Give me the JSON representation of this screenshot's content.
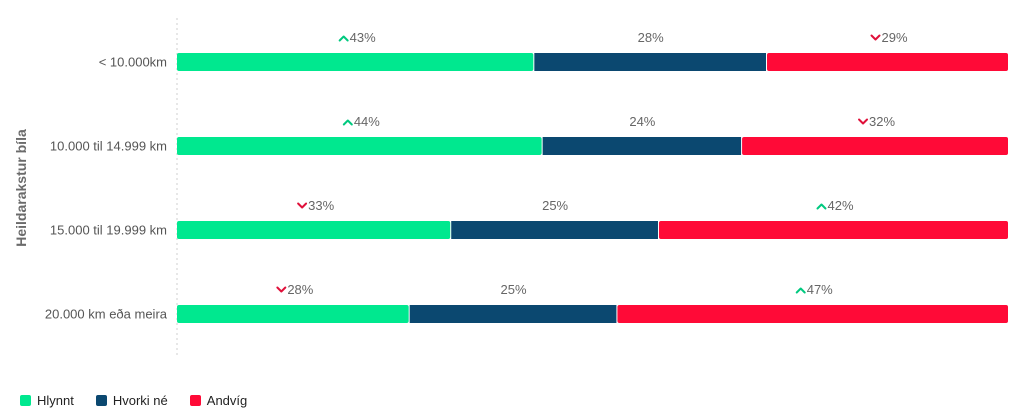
{
  "chart_data": {
    "type": "bar",
    "orientation": "horizontal",
    "stacked": true,
    "percent": true,
    "ylabel": "Heildarakstur bíla",
    "categories": [
      "< 10.000km",
      "10.000 til 14.999 km",
      "15.000 til 19.999 km",
      "20.000 km eða meira"
    ],
    "series": [
      {
        "name": "Hlynnt",
        "color": "#00e88f",
        "values": [
          43,
          44,
          33,
          28
        ],
        "trend": [
          "up",
          "up",
          "down",
          "down"
        ]
      },
      {
        "name": "Hvorki né",
        "color": "#0b4870",
        "values": [
          28,
          24,
          25,
          25
        ],
        "trend": [
          "none",
          "none",
          "none",
          "none"
        ]
      },
      {
        "name": "Andvíg",
        "color": "#ff0a37",
        "values": [
          29,
          32,
          42,
          47
        ],
        "trend": [
          "down",
          "down",
          "up",
          "up"
        ]
      }
    ],
    "xlim": [
      0,
      100
    ],
    "grid": false,
    "legend_position": "bottom-left",
    "trend_colors": {
      "up": "#00c97f",
      "down": "#e0103a"
    }
  }
}
